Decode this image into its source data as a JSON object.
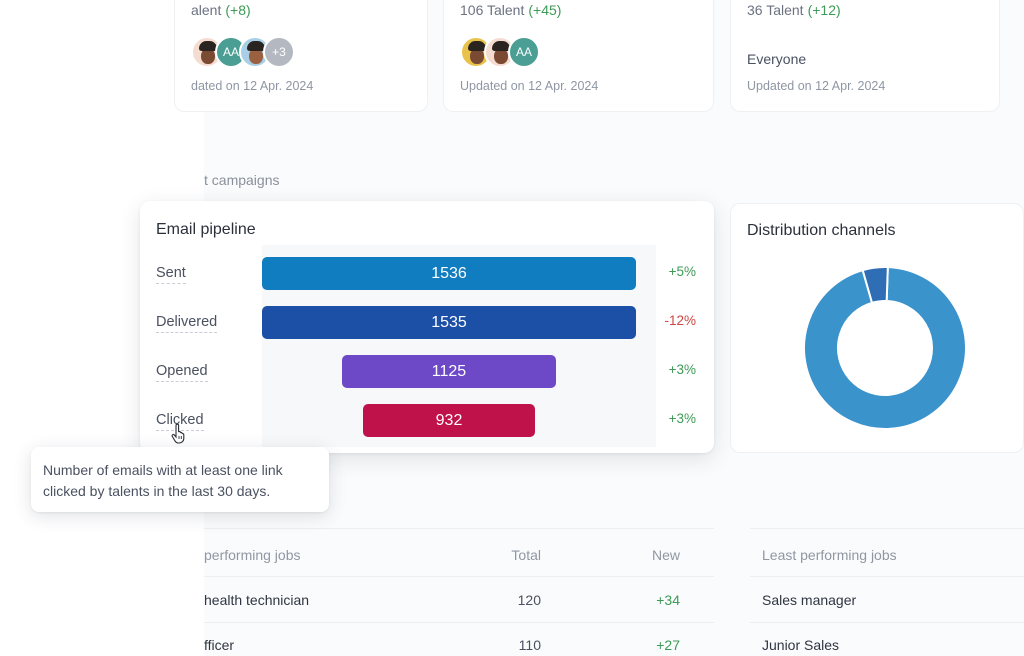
{
  "segments": [
    {
      "title": "alent",
      "delta": "(+8)",
      "updated": "dated on 12 Apr. 2024",
      "avatars": [
        "photo",
        "AA",
        "photo",
        "+3"
      ]
    },
    {
      "title": "106 Talent",
      "delta": "(+45)",
      "updated": "Updated on 12 Apr. 2024",
      "avatars": [
        "photo",
        "photo",
        "AA"
      ]
    },
    {
      "title": "36 Talent",
      "delta": "(+12)",
      "updated": "Updated on 12 Apr. 2024",
      "audience": "Everyone"
    }
  ],
  "section_heading": "t campaigns",
  "pipeline": {
    "title": "Email pipeline",
    "stages": [
      {
        "label": "Sent",
        "value": "1536",
        "delta": "+5%",
        "trend": "up",
        "color": "#0f7dc0"
      },
      {
        "label": "Delivered",
        "value": "1535",
        "delta": "-12%",
        "trend": "down",
        "color": "#1c4fa6"
      },
      {
        "label": "Opened",
        "value": "1125",
        "delta": "+3%",
        "trend": "up",
        "color": "#6d49c8"
      },
      {
        "label": "Clicked",
        "value": "932",
        "delta": "+3%",
        "trend": "up",
        "color": "#c0124a"
      }
    ]
  },
  "tooltip": {
    "text": "Number of emails with at least one link clicked by talents in the last 30 days."
  },
  "distribution": {
    "title": "Distribution channels",
    "chart_data": {
      "type": "pie",
      "values": [
        95,
        5
      ],
      "colors": [
        "#3b93cc",
        "#2f6db5"
      ]
    }
  },
  "jobs": {
    "best_heading": "performing jobs",
    "total_heading": "Total",
    "new_heading": "New",
    "least_heading": "Least performing jobs",
    "best_rows": [
      {
        "name": "health technician",
        "total": "120",
        "new": "+34"
      },
      {
        "name": "fficer",
        "total": "110",
        "new": "+27"
      }
    ],
    "least_rows": [
      {
        "name": "Sales manager"
      },
      {
        "name": "Junior Sales"
      }
    ]
  },
  "icons": {
    "pointer": "hand-pointer-icon"
  }
}
